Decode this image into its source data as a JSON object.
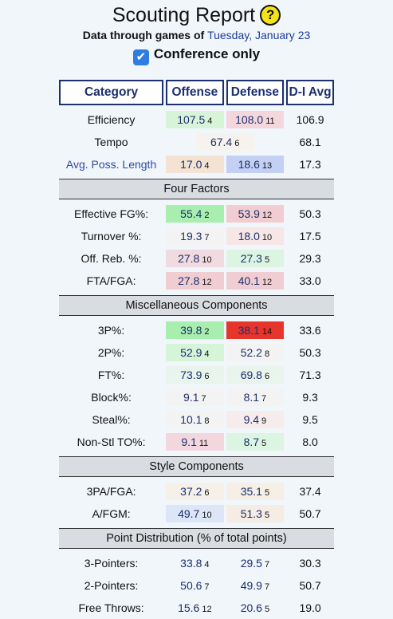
{
  "header": {
    "title": "Scouting Report",
    "help_label": "?",
    "subtitle_prefix": "Data through games of",
    "subtitle_date": "Tuesday, January 23",
    "conference_label": "Conference only",
    "conference_checked": true
  },
  "columns": {
    "category": "Category",
    "offense": "Offense",
    "defense": "Defense",
    "avg": "D-I Avg"
  },
  "top_rows": [
    {
      "label": "Efficiency",
      "link": false,
      "off": "107.5",
      "off_rank": "4",
      "off_bg": "#d7f4d9",
      "def": "108.0",
      "def_rank": "11",
      "def_bg": "#f3d7dd",
      "avg": "106.9"
    },
    {
      "label": "Tempo",
      "link": false,
      "mid": "67.4",
      "mid_rank": "6",
      "mid_bg": "#f6f3ee",
      "avg": "68.1"
    },
    {
      "label": "Avg. Poss. Length",
      "link": true,
      "off": "17.0",
      "off_rank": "4",
      "off_bg": "#f4e3d3",
      "def": "18.6",
      "def_rank": "13",
      "def_bg": "#c4d0f3",
      "avg": "17.3"
    }
  ],
  "sections": [
    {
      "title": "Four Factors",
      "rows": [
        {
          "label": "Effective FG%:",
          "off": "55.4",
          "off_rank": "2",
          "off_bg": "#a8eeaf",
          "def": "53.9",
          "def_rank": "12",
          "def_bg": "#f1cdd1",
          "avg": "50.3"
        },
        {
          "label": "Turnover %:",
          "off": "19.3",
          "off_rank": "7",
          "off_bg": "#f3f3f3",
          "def": "18.0",
          "def_rank": "10",
          "def_bg": "#f6e6e6",
          "avg": "17.5"
        },
        {
          "label": "Off. Reb. %:",
          "off": "27.8",
          "off_rank": "10",
          "off_bg": "#f2dbe0",
          "def": "27.3",
          "def_rank": "5",
          "def_bg": "#dcf4e2",
          "avg": "29.3"
        },
        {
          "label": "FTA/FGA:",
          "off": "27.8",
          "off_rank": "12",
          "off_bg": "#f0cdd3",
          "def": "40.1",
          "def_rank": "12",
          "def_bg": "#f0cdd3",
          "avg": "33.0"
        }
      ]
    },
    {
      "title": "Miscellaneous Components",
      "rows": [
        {
          "label": "3P%:",
          "off": "39.8",
          "off_rank": "2",
          "off_bg": "#a8eeaf",
          "def": "38.1",
          "def_rank": "14",
          "def_bg": "#e5352c",
          "avg": "33.6"
        },
        {
          "label": "2P%:",
          "off": "52.9",
          "off_rank": "4",
          "off_bg": "#d5f4d8",
          "def": "52.2",
          "def_rank": "8",
          "def_bg": "#f3f3f3",
          "avg": "50.3"
        },
        {
          "label": "FT%:",
          "off": "73.9",
          "off_rank": "6",
          "off_bg": "#e9f5ec",
          "def": "69.8",
          "def_rank": "6",
          "def_bg": "#e9f5ec",
          "avg": "71.3"
        },
        {
          "label": "Block%:",
          "off": "9.1",
          "off_rank": "7",
          "off_bg": "#f3f3f3",
          "def": "8.1",
          "def_rank": "7",
          "def_bg": "#f3f3f3",
          "avg": "9.3"
        },
        {
          "label": "Steal%:",
          "off": "10.1",
          "off_rank": "8",
          "off_bg": "#f3f3f3",
          "def": "9.4",
          "def_rank": "9",
          "def_bg": "#f6ecec",
          "avg": "9.5"
        },
        {
          "label": "Non-Stl TO%:",
          "off": "9.1",
          "off_rank": "11",
          "off_bg": "#f2d8de",
          "def": "8.7",
          "def_rank": "5",
          "def_bg": "#dcf4e2",
          "avg": "8.0"
        }
      ]
    },
    {
      "title": "Style Components",
      "rows": [
        {
          "label": "3PA/FGA:",
          "off": "37.2",
          "off_rank": "6",
          "off_bg": "#f5f1e8",
          "def": "35.1",
          "def_rank": "5",
          "def_bg": "#f5efe6",
          "avg": "37.4"
        },
        {
          "label": "A/FGM:",
          "off": "49.7",
          "off_rank": "10",
          "off_bg": "#dde6f7",
          "def": "51.3",
          "def_rank": "5",
          "def_bg": "#f5ece4",
          "avg": "50.7"
        }
      ]
    },
    {
      "title": "Point Distribution (% of total points)",
      "rows": [
        {
          "label": "3-Pointers:",
          "off": "33.8",
          "off_rank": "4",
          "off_bg": "#f1f6fb",
          "def": "29.5",
          "def_rank": "7",
          "def_bg": "#f1f6fb",
          "avg": "30.3"
        },
        {
          "label": "2-Pointers:",
          "off": "50.6",
          "off_rank": "7",
          "off_bg": "#f1f6fb",
          "def": "49.9",
          "def_rank": "7",
          "def_bg": "#f1f6fb",
          "avg": "50.7"
        },
        {
          "label": "Free Throws:",
          "off": "15.6",
          "off_rank": "12",
          "off_bg": "#f1f6fb",
          "def": "20.6",
          "def_rank": "5",
          "def_bg": "#f1f6fb",
          "avg": "19.0"
        }
      ]
    }
  ]
}
